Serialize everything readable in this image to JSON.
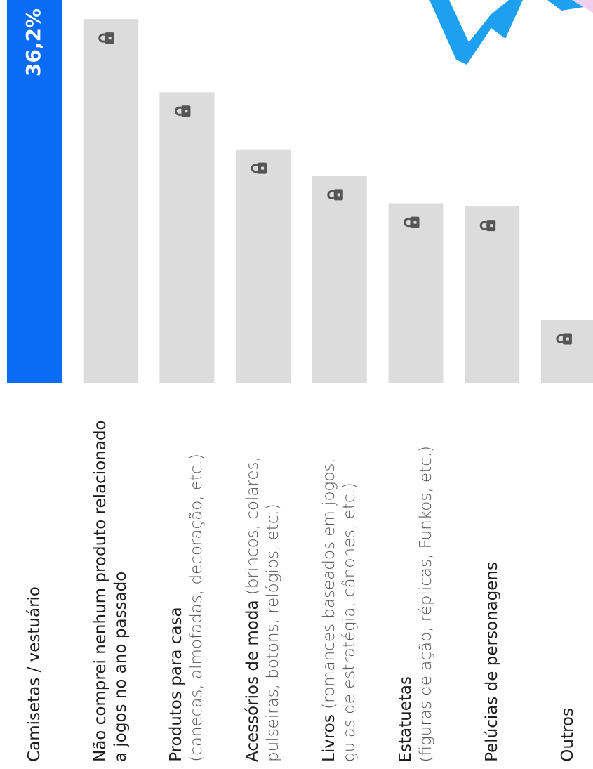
{
  "chart_data": {
    "type": "bar",
    "categories": [
      "Camisetas / vestuário",
      "Não comprei nenhum produto relacionado a jogos no ano passado",
      "Produtos para casa",
      "Acessórios de moda",
      "Livros",
      "Estatuetas",
      "Pelúcias de personagens",
      "Outros"
    ],
    "category_notes": [
      null,
      null,
      "(canecas, almofadas, decoração, etc.)",
      "(brincos, colares, pulseiras, botons, relógios, etc.)",
      "(romances baseados em jogos, guias de estratégia, cânones, etc.)",
      "(figuras de ação, réplicas, Funkos, etc.)",
      null,
      null
    ],
    "values": [
      36.2,
      34.4,
      27.5,
      22.1,
      19.6,
      17.0,
      16.7,
      6.0
    ],
    "value_labels": [
      "36,2%",
      null,
      null,
      null,
      null,
      null,
      null,
      null
    ],
    "colors": [
      "#0a6cf5",
      "#dcdcdc",
      "#dcdcdc",
      "#dcdcdc",
      "#dcdcdc",
      "#dcdcdc",
      "#dcdcdc",
      "#dcdcdc"
    ],
    "locked": [
      false,
      true,
      true,
      true,
      true,
      true,
      true,
      true
    ]
  }
}
